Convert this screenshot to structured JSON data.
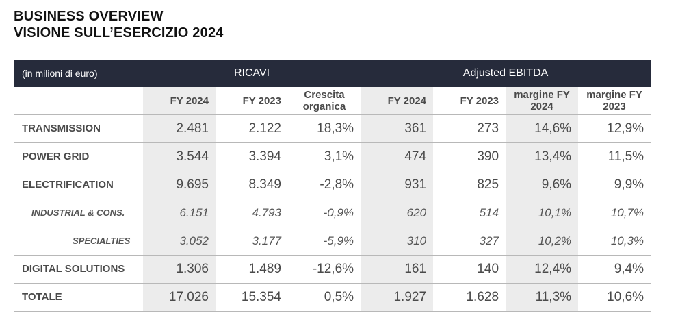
{
  "title": {
    "line1": "BUSINESS OVERVIEW",
    "line2": "VISIONE SULL’ESERCIZIO 2024"
  },
  "table": {
    "unit_label": "(in milioni di euro)",
    "group_ricavi": "RICAVI",
    "group_ebitda": "Adjusted EBITDA",
    "headers": [
      "FY 2024",
      "FY 2023",
      "Crescita organica",
      "FY 2024",
      "FY 2023",
      "margine FY 2024",
      "margine FY 2023"
    ],
    "rows": [
      {
        "label": "TRANSMISSION",
        "values": [
          "2.481",
          "2.122",
          "18,3%",
          "361",
          "273",
          "14,6%",
          "12,9%"
        ]
      },
      {
        "label": "POWER GRID",
        "values": [
          "3.544",
          "3.394",
          "3,1%",
          "474",
          "390",
          "13,4%",
          "11,5%"
        ]
      },
      {
        "label": "ELECTRIFICATION",
        "values": [
          "9.695",
          "8.349",
          "-2,8%",
          "931",
          "825",
          "9,6%",
          "9,9%"
        ]
      },
      {
        "label": "INDUSTRIAL & CONS.",
        "values": [
          "6.151",
          "4.793",
          "-0,9%",
          "620",
          "514",
          "10,1%",
          "10,7%"
        ]
      },
      {
        "label": "SPECIALTIES",
        "values": [
          "3.052",
          "3.177",
          "-5,9%",
          "310",
          "327",
          "10,2%",
          "10,3%"
        ]
      },
      {
        "label": "DIGITAL SOLUTIONS",
        "values": [
          "1.306",
          "1.489",
          "-12,6%",
          "161",
          "140",
          "12,4%",
          "9,4%"
        ]
      },
      {
        "label": "TOTALE",
        "values": [
          "17.026",
          "15.354",
          "0,5%",
          "1.927",
          "1.628",
          "11,3%",
          "10,6%"
        ]
      }
    ]
  }
}
